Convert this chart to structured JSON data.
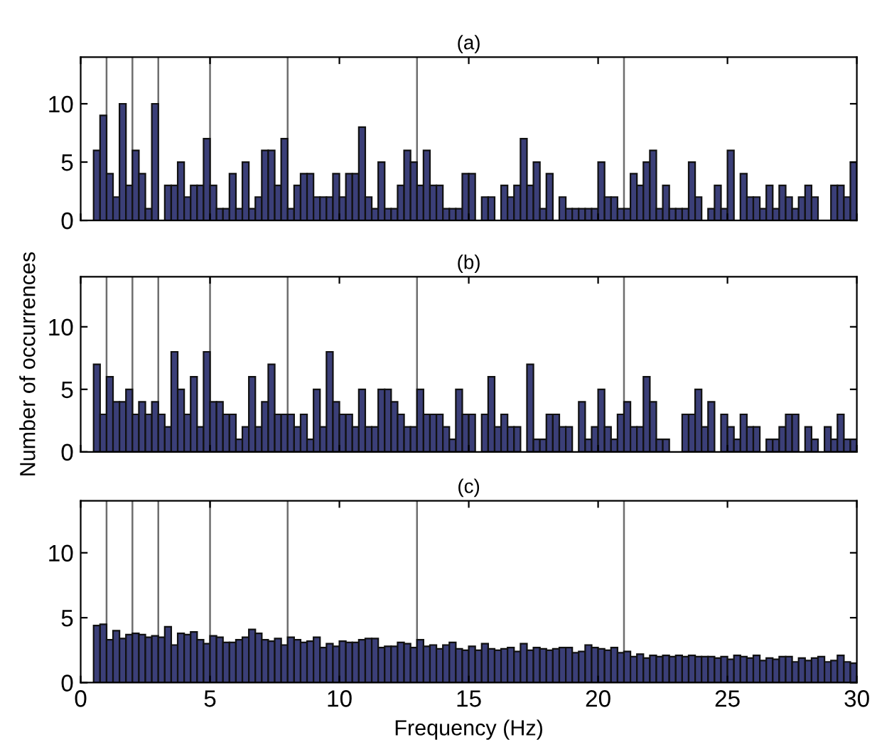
{
  "chart_data": [
    {
      "type": "histogram",
      "title": "(a)",
      "color": "#3b3f78",
      "xlim": [
        0,
        30
      ],
      "xticks": [
        0,
        5,
        10,
        15,
        20,
        25,
        30
      ],
      "ylim": [
        0,
        14
      ],
      "yticks": [
        0,
        5,
        10
      ],
      "tick_labels": "y",
      "grid": false,
      "bins": [
        0.5,
        0.75,
        1,
        1.25,
        1.5,
        1.75,
        2,
        2.25,
        2.5,
        2.75,
        3,
        3.25,
        3.5,
        3.75,
        4,
        4.25,
        4.5,
        4.75,
        5,
        5.25,
        5.5,
        5.75,
        6,
        6.25,
        6.5,
        6.75,
        7,
        7.25,
        7.5,
        7.75,
        8,
        8.25,
        8.5,
        8.75,
        9,
        9.25,
        9.5,
        9.75,
        10,
        10.25,
        10.5,
        10.75,
        11,
        11.25,
        11.5,
        11.75,
        12,
        12.25,
        12.5,
        12.75,
        13,
        13.25,
        13.5,
        13.75,
        14,
        14.25,
        14.5,
        14.75,
        15,
        15.25,
        15.5,
        15.75,
        16,
        16.25,
        16.5,
        16.75,
        17,
        17.25,
        17.5,
        17.75,
        18,
        18.25,
        18.5,
        18.75,
        19,
        19.25,
        19.5,
        19.75,
        20,
        20.25,
        20.5,
        20.75,
        21,
        21.25,
        21.5,
        21.75,
        22,
        22.25,
        22.5,
        22.75,
        23,
        23.25,
        23.5,
        23.75,
        24,
        24.25,
        24.5,
        24.75,
        25,
        25.25,
        25.5,
        25.75,
        26,
        26.25,
        26.5,
        26.75,
        27,
        27.25,
        27.5,
        27.75,
        28,
        28.25,
        28.5,
        28.75,
        29,
        29.25,
        29.5,
        29.75,
        30
      ],
      "values": [
        6,
        9,
        4,
        2,
        10,
        3,
        6,
        4,
        1,
        10,
        0,
        3,
        3,
        5,
        2,
        3,
        3,
        7,
        3,
        1,
        1,
        4,
        1,
        5,
        1,
        2,
        6,
        6,
        3,
        7,
        1,
        3,
        4,
        4,
        2,
        2,
        2,
        4,
        2,
        4,
        4,
        8,
        2,
        1,
        5,
        1,
        1,
        3,
        6,
        5,
        3,
        6,
        3,
        3,
        1,
        1,
        1,
        4,
        4,
        0,
        2,
        2,
        0,
        3,
        2,
        3,
        7,
        3,
        5,
        1,
        4,
        0,
        2,
        1,
        1,
        1,
        1,
        1,
        5,
        2,
        2,
        1,
        1,
        4,
        3,
        5,
        6,
        1,
        3,
        1,
        1,
        1,
        5,
        2,
        0,
        1,
        3,
        1,
        6,
        0,
        4,
        2,
        2,
        1,
        3,
        1,
        3,
        2,
        1,
        2,
        3,
        2,
        0,
        0,
        3,
        3,
        2,
        5
      ],
      "ref_lines": [
        {
          "axis": "x",
          "value": 1,
          "color": "#6e6e6e"
        },
        {
          "axis": "x",
          "value": 2,
          "color": "#6e6e6e"
        },
        {
          "axis": "x",
          "value": 3,
          "color": "#6e6e6e"
        },
        {
          "axis": "x",
          "value": 5,
          "color": "#6e6e6e"
        },
        {
          "axis": "x",
          "value": 8,
          "color": "#6e6e6e"
        },
        {
          "axis": "x",
          "value": 13,
          "color": "#6e6e6e"
        },
        {
          "axis": "x",
          "value": 21,
          "color": "#6e6e6e"
        }
      ]
    },
    {
      "type": "histogram",
      "title": "(b)",
      "ylabel": "Number of occurrences",
      "color": "#3b3f78",
      "xlim": [
        0,
        30
      ],
      "xticks": [
        0,
        5,
        10,
        15,
        20,
        25,
        30
      ],
      "ylim": [
        0,
        14
      ],
      "yticks": [
        0,
        5,
        10
      ],
      "tick_labels": "y",
      "grid": false,
      "bins": [
        0.5,
        0.75,
        1,
        1.25,
        1.5,
        1.75,
        2,
        2.25,
        2.5,
        2.75,
        3,
        3.25,
        3.5,
        3.75,
        4,
        4.25,
        4.5,
        4.75,
        5,
        5.25,
        5.5,
        5.75,
        6,
        6.25,
        6.5,
        6.75,
        7,
        7.25,
        7.5,
        7.75,
        8,
        8.25,
        8.5,
        8.75,
        9,
        9.25,
        9.5,
        9.75,
        10,
        10.25,
        10.5,
        10.75,
        11,
        11.25,
        11.5,
        11.75,
        12,
        12.25,
        12.5,
        12.75,
        13,
        13.25,
        13.5,
        13.75,
        14,
        14.25,
        14.5,
        14.75,
        15,
        15.25,
        15.5,
        15.75,
        16,
        16.25,
        16.5,
        16.75,
        17,
        17.25,
        17.5,
        17.75,
        18,
        18.25,
        18.5,
        18.75,
        19,
        19.25,
        19.5,
        19.75,
        20,
        20.25,
        20.5,
        20.75,
        21,
        21.25,
        21.5,
        21.75,
        22,
        22.25,
        22.5,
        22.75,
        23,
        23.25,
        23.5,
        23.75,
        24,
        24.25,
        24.5,
        24.75,
        25,
        25.25,
        25.5,
        25.75,
        26,
        26.25,
        26.5,
        26.75,
        27,
        27.25,
        27.5,
        27.75,
        28,
        28.25,
        28.5,
        28.75,
        29,
        29.25,
        29.5,
        29.75,
        30
      ],
      "values": [
        7,
        3,
        6,
        4,
        4,
        5,
        3,
        4,
        3,
        4,
        3,
        2,
        8,
        5,
        3,
        6,
        2,
        8,
        4,
        4,
        3,
        3,
        1,
        2,
        6,
        2,
        4,
        7,
        3,
        3,
        3,
        2,
        3,
        1,
        5,
        2,
        8,
        4,
        3,
        3,
        2,
        5,
        2,
        2,
        5,
        5,
        4,
        3,
        2,
        2,
        5,
        3,
        3,
        3,
        2,
        1,
        5,
        3,
        3,
        0,
        3,
        6,
        2,
        3,
        2,
        2,
        0,
        7,
        1,
        1,
        3,
        3,
        2,
        2,
        0,
        4,
        1,
        2,
        5,
        2,
        1,
        3,
        4,
        2,
        2,
        6,
        4,
        1,
        1,
        0,
        0,
        3,
        3,
        5,
        2,
        4,
        0,
        3,
        2,
        1,
        3,
        2,
        2,
        0,
        1,
        1,
        2,
        3,
        3,
        0,
        2,
        1,
        0,
        2,
        1,
        3,
        1,
        1
      ],
      "ref_lines": [
        {
          "axis": "x",
          "value": 1,
          "color": "#6e6e6e"
        },
        {
          "axis": "x",
          "value": 2,
          "color": "#6e6e6e"
        },
        {
          "axis": "x",
          "value": 3,
          "color": "#6e6e6e"
        },
        {
          "axis": "x",
          "value": 5,
          "color": "#6e6e6e"
        },
        {
          "axis": "x",
          "value": 8,
          "color": "#6e6e6e"
        },
        {
          "axis": "x",
          "value": 13,
          "color": "#6e6e6e"
        },
        {
          "axis": "x",
          "value": 21,
          "color": "#6e6e6e"
        }
      ]
    },
    {
      "type": "histogram",
      "title": "(c)",
      "xlabel": "Frequency (Hz)",
      "color": "#3b3f78",
      "xlim": [
        0,
        30
      ],
      "xticks": [
        0,
        5,
        10,
        15,
        20,
        25,
        30
      ],
      "ylim": [
        0,
        14
      ],
      "yticks": [
        0,
        5,
        10
      ],
      "grid": false,
      "bins": [
        0.5,
        0.75,
        1,
        1.25,
        1.5,
        1.75,
        2,
        2.25,
        2.5,
        2.75,
        3,
        3.25,
        3.5,
        3.75,
        4,
        4.25,
        4.5,
        4.75,
        5,
        5.25,
        5.5,
        5.75,
        6,
        6.25,
        6.5,
        6.75,
        7,
        7.25,
        7.5,
        7.75,
        8,
        8.25,
        8.5,
        8.75,
        9,
        9.25,
        9.5,
        9.75,
        10,
        10.25,
        10.5,
        10.75,
        11,
        11.25,
        11.5,
        11.75,
        12,
        12.25,
        12.5,
        12.75,
        13,
        13.25,
        13.5,
        13.75,
        14,
        14.25,
        14.5,
        14.75,
        15,
        15.25,
        15.5,
        15.75,
        16,
        16.25,
        16.5,
        16.75,
        17,
        17.25,
        17.5,
        17.75,
        18,
        18.25,
        18.5,
        18.75,
        19,
        19.25,
        19.5,
        19.75,
        20,
        20.25,
        20.5,
        20.75,
        21,
        21.25,
        21.5,
        21.75,
        22,
        22.25,
        22.5,
        22.75,
        23,
        23.25,
        23.5,
        23.75,
        24,
        24.25,
        24.5,
        24.75,
        25,
        25.25,
        25.5,
        25.75,
        26,
        26.25,
        26.5,
        26.75,
        27,
        27.25,
        27.5,
        27.75,
        28,
        28.25,
        28.5,
        28.75,
        29,
        29.25,
        29.5,
        29.75,
        30
      ],
      "values": [
        4.4,
        4.5,
        3.3,
        4.0,
        3.4,
        3.7,
        3.8,
        3.7,
        3.5,
        3.6,
        3.5,
        4.3,
        2.9,
        3.8,
        3.7,
        3.9,
        3.3,
        3.0,
        3.6,
        3.5,
        3.1,
        3.1,
        3.3,
        3.5,
        4.1,
        3.8,
        3.3,
        3.2,
        3.4,
        2.9,
        3.5,
        3.3,
        3.1,
        3.2,
        3.5,
        2.7,
        3.0,
        2.8,
        3.2,
        3.1,
        3.1,
        3.3,
        3.4,
        3.4,
        2.7,
        2.8,
        2.8,
        3.1,
        3.0,
        2.7,
        3.3,
        2.8,
        2.9,
        2.6,
        2.9,
        3.1,
        2.6,
        2.5,
        2.8,
        2.5,
        3.0,
        2.6,
        2.5,
        2.6,
        2.7,
        2.4,
        3.0,
        2.5,
        2.7,
        2.6,
        2.5,
        2.6,
        2.7,
        2.7,
        2.3,
        2.4,
        2.9,
        2.7,
        2.6,
        2.5,
        2.7,
        2.3,
        2.4,
        2.0,
        2.2,
        1.9,
        2.1,
        2.0,
        2.1,
        2.0,
        2.1,
        2.0,
        2.1,
        2.0,
        2.0,
        2.0,
        1.9,
        2.0,
        1.8,
        2.1,
        2.0,
        1.9,
        2.1,
        1.7,
        1.9,
        1.8,
        2.0,
        2.0,
        1.6,
        1.9,
        1.7,
        1.9,
        2.0,
        1.6,
        1.7,
        2.1,
        1.6,
        1.5
      ],
      "ref_lines": [
        {
          "axis": "x",
          "value": 1,
          "color": "#6e6e6e"
        },
        {
          "axis": "x",
          "value": 2,
          "color": "#6e6e6e"
        },
        {
          "axis": "x",
          "value": 3,
          "color": "#6e6e6e"
        },
        {
          "axis": "x",
          "value": 5,
          "color": "#6e6e6e"
        },
        {
          "axis": "x",
          "value": 8,
          "color": "#6e6e6e"
        },
        {
          "axis": "x",
          "value": 13,
          "color": "#6e6e6e"
        },
        {
          "axis": "x",
          "value": 21,
          "color": "#6e6e6e"
        }
      ]
    }
  ]
}
